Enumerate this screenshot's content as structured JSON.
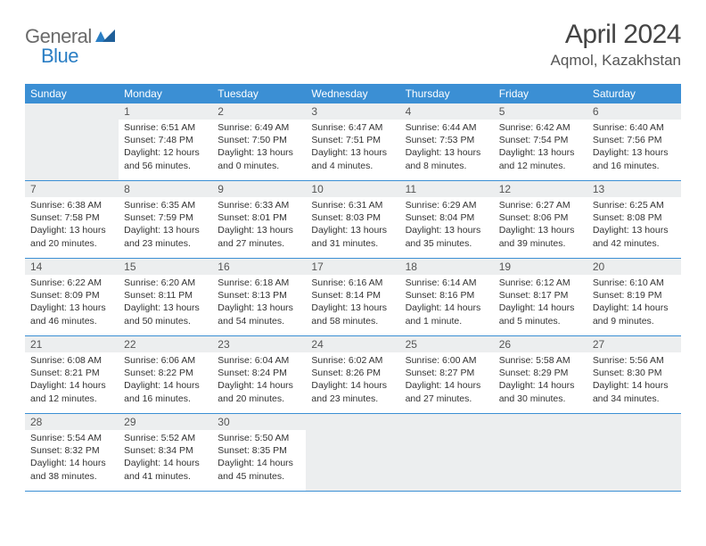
{
  "brand": {
    "name1": "General",
    "name2": "Blue"
  },
  "title": {
    "month": "April 2024",
    "location": "Aqmol, Kazakhstan"
  },
  "colors": {
    "header_bg": "#3b8fd4",
    "daynum_bg": "#eceeef",
    "rule": "#3b8fd4",
    "text": "#333333",
    "title_text": "#444444",
    "logo_gray": "#6a6a6a",
    "logo_blue": "#2a7ec4"
  },
  "weekdays": [
    "Sunday",
    "Monday",
    "Tuesday",
    "Wednesday",
    "Thursday",
    "Friday",
    "Saturday"
  ],
  "weeks": [
    [
      {
        "day": "",
        "sunrise": "",
        "sunset": "",
        "daylight1": "",
        "daylight2": ""
      },
      {
        "day": "1",
        "sunrise": "Sunrise: 6:51 AM",
        "sunset": "Sunset: 7:48 PM",
        "daylight1": "Daylight: 12 hours",
        "daylight2": "and 56 minutes."
      },
      {
        "day": "2",
        "sunrise": "Sunrise: 6:49 AM",
        "sunset": "Sunset: 7:50 PM",
        "daylight1": "Daylight: 13 hours",
        "daylight2": "and 0 minutes."
      },
      {
        "day": "3",
        "sunrise": "Sunrise: 6:47 AM",
        "sunset": "Sunset: 7:51 PM",
        "daylight1": "Daylight: 13 hours",
        "daylight2": "and 4 minutes."
      },
      {
        "day": "4",
        "sunrise": "Sunrise: 6:44 AM",
        "sunset": "Sunset: 7:53 PM",
        "daylight1": "Daylight: 13 hours",
        "daylight2": "and 8 minutes."
      },
      {
        "day": "5",
        "sunrise": "Sunrise: 6:42 AM",
        "sunset": "Sunset: 7:54 PM",
        "daylight1": "Daylight: 13 hours",
        "daylight2": "and 12 minutes."
      },
      {
        "day": "6",
        "sunrise": "Sunrise: 6:40 AM",
        "sunset": "Sunset: 7:56 PM",
        "daylight1": "Daylight: 13 hours",
        "daylight2": "and 16 minutes."
      }
    ],
    [
      {
        "day": "7",
        "sunrise": "Sunrise: 6:38 AM",
        "sunset": "Sunset: 7:58 PM",
        "daylight1": "Daylight: 13 hours",
        "daylight2": "and 20 minutes."
      },
      {
        "day": "8",
        "sunrise": "Sunrise: 6:35 AM",
        "sunset": "Sunset: 7:59 PM",
        "daylight1": "Daylight: 13 hours",
        "daylight2": "and 23 minutes."
      },
      {
        "day": "9",
        "sunrise": "Sunrise: 6:33 AM",
        "sunset": "Sunset: 8:01 PM",
        "daylight1": "Daylight: 13 hours",
        "daylight2": "and 27 minutes."
      },
      {
        "day": "10",
        "sunrise": "Sunrise: 6:31 AM",
        "sunset": "Sunset: 8:03 PM",
        "daylight1": "Daylight: 13 hours",
        "daylight2": "and 31 minutes."
      },
      {
        "day": "11",
        "sunrise": "Sunrise: 6:29 AM",
        "sunset": "Sunset: 8:04 PM",
        "daylight1": "Daylight: 13 hours",
        "daylight2": "and 35 minutes."
      },
      {
        "day": "12",
        "sunrise": "Sunrise: 6:27 AM",
        "sunset": "Sunset: 8:06 PM",
        "daylight1": "Daylight: 13 hours",
        "daylight2": "and 39 minutes."
      },
      {
        "day": "13",
        "sunrise": "Sunrise: 6:25 AM",
        "sunset": "Sunset: 8:08 PM",
        "daylight1": "Daylight: 13 hours",
        "daylight2": "and 42 minutes."
      }
    ],
    [
      {
        "day": "14",
        "sunrise": "Sunrise: 6:22 AM",
        "sunset": "Sunset: 8:09 PM",
        "daylight1": "Daylight: 13 hours",
        "daylight2": "and 46 minutes."
      },
      {
        "day": "15",
        "sunrise": "Sunrise: 6:20 AM",
        "sunset": "Sunset: 8:11 PM",
        "daylight1": "Daylight: 13 hours",
        "daylight2": "and 50 minutes."
      },
      {
        "day": "16",
        "sunrise": "Sunrise: 6:18 AM",
        "sunset": "Sunset: 8:13 PM",
        "daylight1": "Daylight: 13 hours",
        "daylight2": "and 54 minutes."
      },
      {
        "day": "17",
        "sunrise": "Sunrise: 6:16 AM",
        "sunset": "Sunset: 8:14 PM",
        "daylight1": "Daylight: 13 hours",
        "daylight2": "and 58 minutes."
      },
      {
        "day": "18",
        "sunrise": "Sunrise: 6:14 AM",
        "sunset": "Sunset: 8:16 PM",
        "daylight1": "Daylight: 14 hours",
        "daylight2": "and 1 minute."
      },
      {
        "day": "19",
        "sunrise": "Sunrise: 6:12 AM",
        "sunset": "Sunset: 8:17 PM",
        "daylight1": "Daylight: 14 hours",
        "daylight2": "and 5 minutes."
      },
      {
        "day": "20",
        "sunrise": "Sunrise: 6:10 AM",
        "sunset": "Sunset: 8:19 PM",
        "daylight1": "Daylight: 14 hours",
        "daylight2": "and 9 minutes."
      }
    ],
    [
      {
        "day": "21",
        "sunrise": "Sunrise: 6:08 AM",
        "sunset": "Sunset: 8:21 PM",
        "daylight1": "Daylight: 14 hours",
        "daylight2": "and 12 minutes."
      },
      {
        "day": "22",
        "sunrise": "Sunrise: 6:06 AM",
        "sunset": "Sunset: 8:22 PM",
        "daylight1": "Daylight: 14 hours",
        "daylight2": "and 16 minutes."
      },
      {
        "day": "23",
        "sunrise": "Sunrise: 6:04 AM",
        "sunset": "Sunset: 8:24 PM",
        "daylight1": "Daylight: 14 hours",
        "daylight2": "and 20 minutes."
      },
      {
        "day": "24",
        "sunrise": "Sunrise: 6:02 AM",
        "sunset": "Sunset: 8:26 PM",
        "daylight1": "Daylight: 14 hours",
        "daylight2": "and 23 minutes."
      },
      {
        "day": "25",
        "sunrise": "Sunrise: 6:00 AM",
        "sunset": "Sunset: 8:27 PM",
        "daylight1": "Daylight: 14 hours",
        "daylight2": "and 27 minutes."
      },
      {
        "day": "26",
        "sunrise": "Sunrise: 5:58 AM",
        "sunset": "Sunset: 8:29 PM",
        "daylight1": "Daylight: 14 hours",
        "daylight2": "and 30 minutes."
      },
      {
        "day": "27",
        "sunrise": "Sunrise: 5:56 AM",
        "sunset": "Sunset: 8:30 PM",
        "daylight1": "Daylight: 14 hours",
        "daylight2": "and 34 minutes."
      }
    ],
    [
      {
        "day": "28",
        "sunrise": "Sunrise: 5:54 AM",
        "sunset": "Sunset: 8:32 PM",
        "daylight1": "Daylight: 14 hours",
        "daylight2": "and 38 minutes."
      },
      {
        "day": "29",
        "sunrise": "Sunrise: 5:52 AM",
        "sunset": "Sunset: 8:34 PM",
        "daylight1": "Daylight: 14 hours",
        "daylight2": "and 41 minutes."
      },
      {
        "day": "30",
        "sunrise": "Sunrise: 5:50 AM",
        "sunset": "Sunset: 8:35 PM",
        "daylight1": "Daylight: 14 hours",
        "daylight2": "and 45 minutes."
      },
      {
        "day": "",
        "sunrise": "",
        "sunset": "",
        "daylight1": "",
        "daylight2": ""
      },
      {
        "day": "",
        "sunrise": "",
        "sunset": "",
        "daylight1": "",
        "daylight2": ""
      },
      {
        "day": "",
        "sunrise": "",
        "sunset": "",
        "daylight1": "",
        "daylight2": ""
      },
      {
        "day": "",
        "sunrise": "",
        "sunset": "",
        "daylight1": "",
        "daylight2": ""
      }
    ]
  ]
}
